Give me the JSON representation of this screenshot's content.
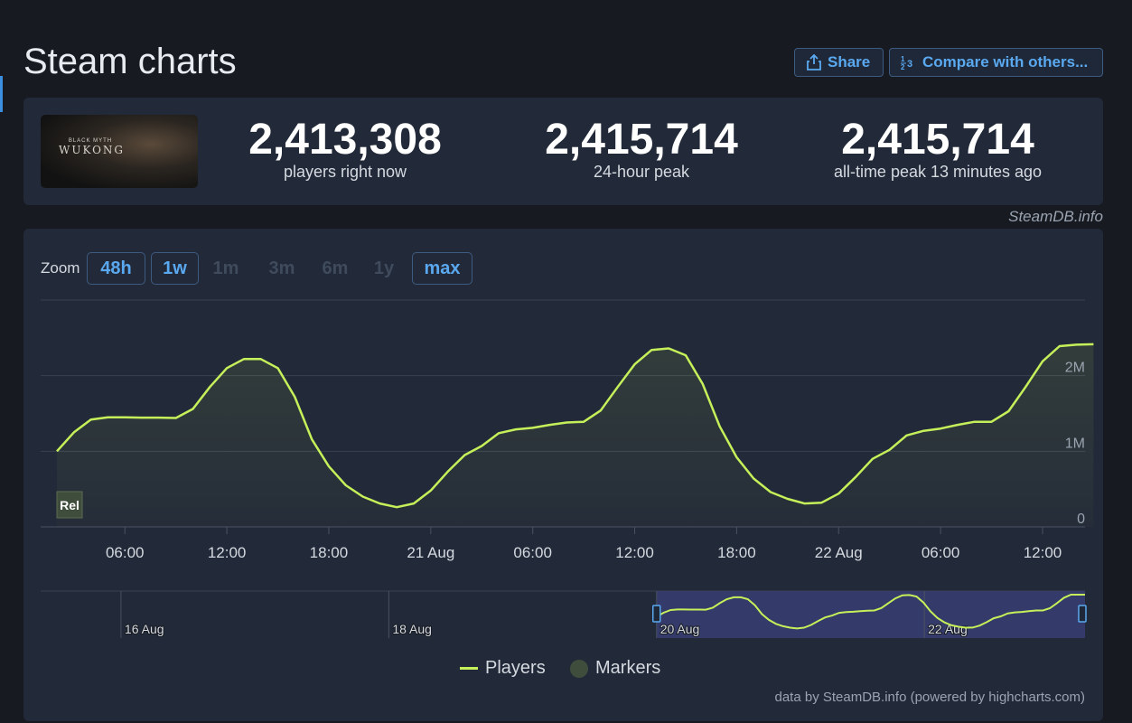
{
  "page": {
    "title": "Steam charts"
  },
  "actions": {
    "share_label": "Share",
    "compare_label": "Compare with others..."
  },
  "game": {
    "thumb_line1": "BLACK MYTH",
    "thumb_line2": "WUKONG"
  },
  "stats": [
    {
      "value": "2,413,308",
      "label": "players right now"
    },
    {
      "value": "2,415,714",
      "label": "24-hour peak"
    },
    {
      "value": "2,415,714",
      "label": "all-time peak 13 minutes ago"
    }
  ],
  "credit_top": "SteamDB.info",
  "zoom": {
    "label": "Zoom",
    "options": [
      {
        "label": "48h",
        "active": true
      },
      {
        "label": "1w",
        "active": true
      },
      {
        "label": "1m",
        "active": false
      },
      {
        "label": "3m",
        "active": false
      },
      {
        "label": "6m",
        "active": false
      },
      {
        "label": "1y",
        "active": false
      },
      {
        "label": "max",
        "active": true
      }
    ]
  },
  "legend": {
    "players": "Players",
    "markers": "Markers"
  },
  "credit_bottom": "data by SteamDB.info (powered by highcharts.com)",
  "colors": {
    "line": "#c6f05a",
    "navigator_fill": "#3a3f75",
    "marker": "#3f4e3c"
  },
  "chart_data": {
    "type": "line",
    "series": [
      {
        "name": "Players",
        "x_hours": [
          0,
          1,
          2,
          3,
          4,
          5,
          6,
          7,
          8,
          9,
          10,
          11,
          12,
          13,
          14,
          15,
          16,
          17,
          18,
          19,
          20,
          21,
          22,
          23,
          24,
          25,
          26,
          27,
          28,
          29,
          30,
          31,
          32,
          33,
          34,
          35,
          36,
          37,
          38,
          39,
          40,
          41,
          42,
          43,
          44,
          45,
          46,
          47,
          48,
          49,
          50,
          51,
          52,
          53,
          54,
          55,
          56,
          57,
          58,
          59,
          60,
          61
        ],
        "values": [
          1000000,
          1250000,
          1420000,
          1450000,
          1450000,
          1445000,
          1445000,
          1440000,
          1560000,
          1850000,
          2100000,
          2220000,
          2220000,
          2100000,
          1720000,
          1160000,
          800000,
          550000,
          400000,
          310000,
          260000,
          310000,
          480000,
          730000,
          950000,
          1070000,
          1240000,
          1290000,
          1310000,
          1350000,
          1380000,
          1390000,
          1540000,
          1850000,
          2150000,
          2340000,
          2360000,
          2270000,
          1890000,
          1330000,
          920000,
          640000,
          460000,
          370000,
          310000,
          320000,
          440000,
          660000,
          900000,
          1020000,
          1210000,
          1270000,
          1300000,
          1350000,
          1390000,
          1390000,
          1530000,
          1850000,
          2190000,
          2390000,
          2410000,
          2415714
        ]
      }
    ],
    "markers": [
      {
        "label": "Rel",
        "x_hours": 0
      }
    ],
    "x_tick_labels": [
      {
        "label": "06:00",
        "x_hours": 4
      },
      {
        "label": "12:00",
        "x_hours": 10
      },
      {
        "label": "18:00",
        "x_hours": 16
      },
      {
        "label": "21 Aug",
        "x_hours": 22
      },
      {
        "label": "06:00",
        "x_hours": 28
      },
      {
        "label": "12:00",
        "x_hours": 34
      },
      {
        "label": "18:00",
        "x_hours": 40
      },
      {
        "label": "22 Aug",
        "x_hours": 46
      },
      {
        "label": "06:00",
        "x_hours": 52
      },
      {
        "label": "12:00",
        "x_hours": 58
      }
    ],
    "y_tick_labels": [
      {
        "label": "0",
        "value": 0
      },
      {
        "label": "1M",
        "value": 1000000
      },
      {
        "label": "2M",
        "value": 2000000
      }
    ],
    "ylim": [
      0,
      3000000
    ],
    "xlim": [
      0,
      60.5
    ],
    "navigator": {
      "labels": [
        "16 Aug",
        "18 Aug",
        "20 Aug",
        "22 Aug"
      ],
      "range_days": [
        15.4,
        23.2
      ],
      "label_days": [
        16,
        18,
        20,
        22
      ],
      "selected_days": [
        20.0,
        23.2
      ]
    }
  }
}
